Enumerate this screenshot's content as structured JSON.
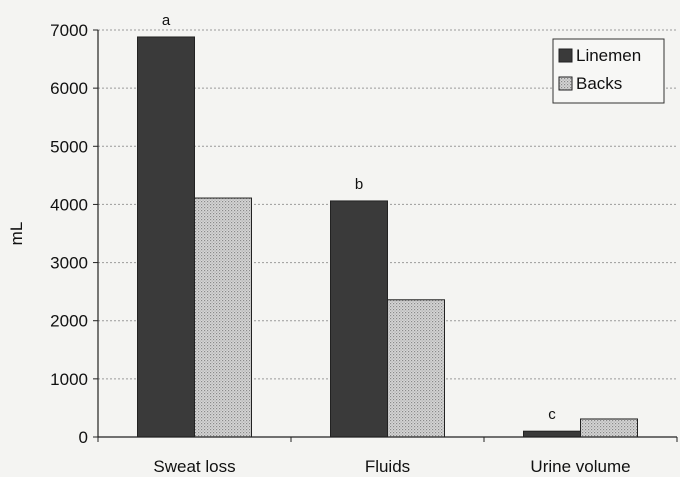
{
  "chart_data": {
    "type": "bar",
    "ylabel": "mL",
    "ylim": [
      0,
      7000
    ],
    "yticks": [
      0,
      1000,
      2000,
      3000,
      4000,
      5000,
      6000,
      7000
    ],
    "grid": true,
    "legend_position": "top-right",
    "categories": [
      "Sweat loss",
      "Fluids",
      "Urine volume"
    ],
    "series": [
      {
        "name": "Linemen",
        "values": [
          6880,
          4060,
          100
        ],
        "color": "#3a3a3a",
        "pattern": "solid"
      },
      {
        "name": "Backs",
        "values": [
          4110,
          2360,
          310
        ],
        "color": "#cccccc",
        "pattern": "dotted"
      }
    ],
    "annotations": [
      {
        "category": "Sweat loss",
        "text": "a"
      },
      {
        "category": "Fluids",
        "text": "b"
      },
      {
        "category": "Urine volume",
        "text": "c"
      }
    ]
  }
}
